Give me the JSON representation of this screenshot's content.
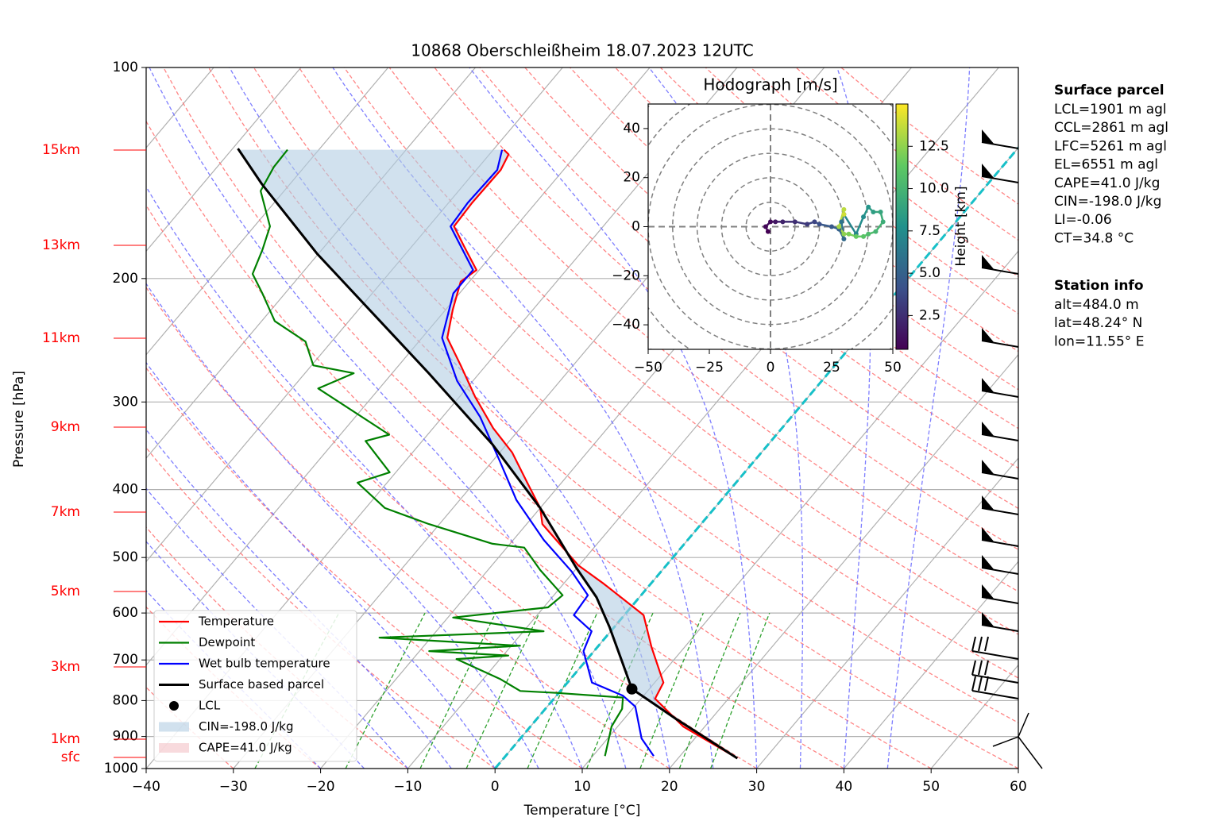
{
  "chart_data": [
    {
      "type": "skewt",
      "title": "10868 Oberschleißheim 18.07.2023 12UTC",
      "x_label": "Temperature [°C]",
      "y_label": "Pressure [hPa]",
      "xlim": [
        -40,
        60
      ],
      "xticks": [
        {
          "value": -40,
          "label": "−40"
        },
        {
          "value": -30,
          "label": "−30"
        },
        {
          "value": -20,
          "label": "−20"
        },
        {
          "value": -10,
          "label": "−10"
        },
        0,
        10,
        20,
        30,
        40,
        50,
        60
      ],
      "ylim": [
        1000,
        100
      ],
      "yticks": [
        100,
        200,
        300,
        400,
        500,
        600,
        700,
        800,
        900,
        1000
      ],
      "y_scale": "log",
      "grid": true,
      "height_labels": [
        "15km",
        "13km",
        "11km",
        "9km",
        "7km",
        "5km",
        "3km",
        "1km",
        "sfc"
      ],
      "series": [
        {
          "name": "Temperature",
          "color": "#ff0000",
          "pressure": [
            967,
            871,
            795,
            754,
            671,
            604,
            545,
            513,
            448,
            425,
            393,
            354,
            327,
            295,
            266,
            243,
            221.5,
            202,
            194.5,
            180,
            168.5,
            156,
            140,
            133,
            131
          ],
          "values": [
            26.8,
            17.5,
            11.6,
            11.0,
            6.2,
            2.2,
            -5.4,
            -10.1,
            -18.2,
            -20.0,
            -23.7,
            -28.6,
            -33.1,
            -38.2,
            -42.9,
            -47.1,
            -49.2,
            -51.0,
            -50.3,
            -54.0,
            -57.1,
            -57.3,
            -57.2,
            -57.8,
            -58.8
          ]
        },
        {
          "name": "Dewpoint",
          "color": "#008000",
          "pressure": [
            960,
            871,
            822,
            792,
            780,
            775,
            745,
            698,
            690,
            680,
            668,
            650.5,
            637,
            609,
            589,
            566,
            521,
            484,
            478,
            448,
            425,
            391,
            378,
            341,
            334,
            287,
            273,
            266,
            246,
            230,
            210,
            197,
            182,
            168.5,
            150,
            138.6,
            131
          ],
          "values": [
            11.4,
            9.3,
            8.8,
            7.8,
            -0.3,
            -4.6,
            -8.1,
            -15.0,
            -9.4,
            -18.9,
            -9.0,
            -25.9,
            -7.7,
            -19.4,
            -9.5,
            -9.0,
            -14.0,
            -18.0,
            -22.0,
            -31.2,
            -37.8,
            -43.4,
            -40.7,
            -46.5,
            -44.4,
            -57.0,
            -54.4,
            -59.8,
            -63.0,
            -68.5,
            -72.6,
            -75.6,
            -76.8,
            -78.2,
            -82.7,
            -83.5,
            -83.6
          ]
        },
        {
          "name": "Wet bulb temperature",
          "color": "#0000ff",
          "pressure": [
            960,
            906,
            816,
            787,
            754,
            680,
            637,
            604,
            566,
            524,
            472,
            414,
            364,
            315,
            280,
            243,
            210,
            194.5,
            168.5,
            156,
            140,
            131
          ],
          "values": [
            17.0,
            13.9,
            10.1,
            7.6,
            2.8,
            -1.2,
            -2.2,
            -5.8,
            -6.1,
            -10.2,
            -16.5,
            -23.5,
            -29.2,
            -35.7,
            -41.8,
            -47.7,
            -50.7,
            -50.7,
            -57.5,
            -57.8,
            -57.6,
            -59.0
          ]
        },
        {
          "name": "Surface based parcel",
          "color": "#000000",
          "pressure": [
            967,
            900,
            850,
            800,
            770,
            700,
            629,
            570,
            517,
            425,
            345,
            273,
            184.5,
            146.7,
            130.5
          ],
          "values": [
            26.8,
            20.8,
            16.0,
            11.1,
            8.0,
            4.0,
            -0.5,
            -4.9,
            -10.1,
            -20.0,
            -31.6,
            -45.8,
            -70.1,
            -83.2,
            -89.4
          ]
        }
      ],
      "lcl": {
        "name": "LCL",
        "color": "#000000",
        "pressure": 770,
        "temperature": 8.0
      },
      "shading": [
        {
          "name": "CIN=-198.0 J/kg",
          "color": "#b3cde3"
        },
        {
          "name": "CAPE=41.0 J/kg",
          "color": "#f4c2c6"
        }
      ],
      "annotations": [
        {
          "title": "Surface parcel",
          "lines": [
            "LCL=1901 m agl",
            "CCL=2861 m agl",
            "LFC=5261 m agl",
            "EL=6551 m agl",
            "CAPE=41.0 J/kg",
            "CIN=-198.0 J/kg",
            "LI=-0.06",
            "CT=34.8 °C"
          ]
        },
        {
          "title": "Station info",
          "lines": [
            "alt=484.0 m",
            "lat=48.24° N",
            "lon=11.55° E"
          ]
        }
      ]
    },
    {
      "type": "hodograph",
      "title": "Hodograph [m/s]",
      "xlim": [
        -50,
        50
      ],
      "xticks": [
        {
          "value": -50,
          "label": "−50"
        },
        {
          "value": -25,
          "label": "−25"
        },
        0,
        25,
        50
      ],
      "ylim": [
        -50,
        50
      ],
      "yticks": [
        {
          "value": -40,
          "label": "−40"
        },
        {
          "value": -20,
          "label": "−20"
        },
        0,
        20,
        40
      ],
      "u": [
        -1,
        -2,
        0,
        2,
        5,
        10,
        15,
        18,
        20,
        25,
        28,
        30,
        29,
        30,
        35,
        38,
        40,
        42,
        45,
        46,
        43,
        40,
        38,
        35,
        32,
        30,
        28,
        30,
        30
      ],
      "v": [
        -2,
        0,
        2,
        2,
        2,
        2,
        1,
        2,
        1,
        0,
        -1,
        -5,
        2,
        5,
        -3,
        4,
        8,
        6,
        6,
        2,
        -2,
        -3,
        -4,
        -4,
        -3,
        -3,
        0,
        7,
        5
      ],
      "height": [
        0.5,
        0.8,
        1.0,
        1.5,
        2.0,
        2.5,
        3.0,
        3.5,
        4.0,
        4.5,
        5.0,
        5.5,
        6.0,
        6.5,
        7.0,
        7.5,
        8.0,
        8.5,
        9.0,
        9.5,
        10.0,
        10.5,
        11.0,
        11.5,
        12.0,
        12.5,
        13.0,
        13.5,
        14.0
      ],
      "colorbar_label": "Height [km]",
      "clim": [
        0.5,
        15
      ],
      "cticks": [
        2.5,
        {
          "value": 5,
          "label": "5.0"
        },
        7.5,
        {
          "value": 10,
          "label": "10.0"
        },
        12.5
      ]
    }
  ]
}
